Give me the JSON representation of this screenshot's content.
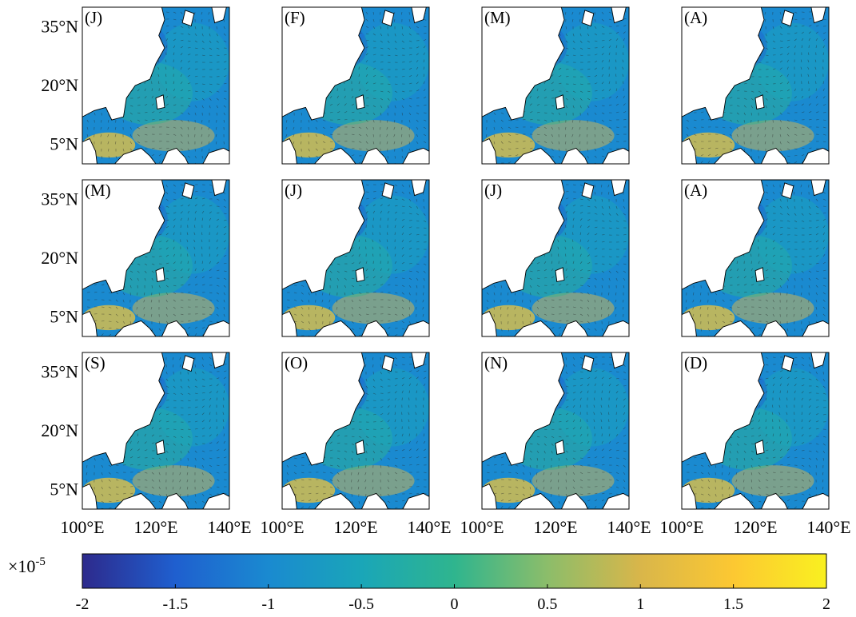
{
  "chart_data": {
    "type": "heatmap",
    "panels": [
      {
        "label": "(J)"
      },
      {
        "label": "(F)"
      },
      {
        "label": "(M)"
      },
      {
        "label": "(A)"
      },
      {
        "label": "(M)"
      },
      {
        "label": "(J)"
      },
      {
        "label": "(J)"
      },
      {
        "label": "(A)"
      },
      {
        "label": "(S)"
      },
      {
        "label": "(O)"
      },
      {
        "label": "(N)"
      },
      {
        "label": "(D)"
      }
    ],
    "x_range": [
      100,
      140
    ],
    "y_range": [
      0,
      40
    ],
    "y_ticks": [
      {
        "value": 35,
        "label": "35°N"
      },
      {
        "value": 20,
        "label": "20°N"
      },
      {
        "value": 5,
        "label": "5°N"
      }
    ],
    "x_ticks": [
      {
        "value": 100,
        "label": "100°E"
      },
      {
        "value": 120,
        "label": "120°E"
      },
      {
        "value": 140,
        "label": "140°E"
      }
    ],
    "colorbar": {
      "range": [
        -2,
        2
      ],
      "multiplier": "×10^-5",
      "ticks": [
        "-2",
        "-1.5",
        "-1",
        "-0.5",
        "0",
        "0.5",
        "1",
        "1.5",
        "2"
      ],
      "colors": [
        "#2d2a8c",
        "#1f5fcf",
        "#1a8ad0",
        "#1aa6b8",
        "#2fb58e",
        "#8cbd6a",
        "#d9b64a",
        "#fcc832",
        "#f9f020"
      ]
    },
    "grid": false,
    "vectors": true
  }
}
